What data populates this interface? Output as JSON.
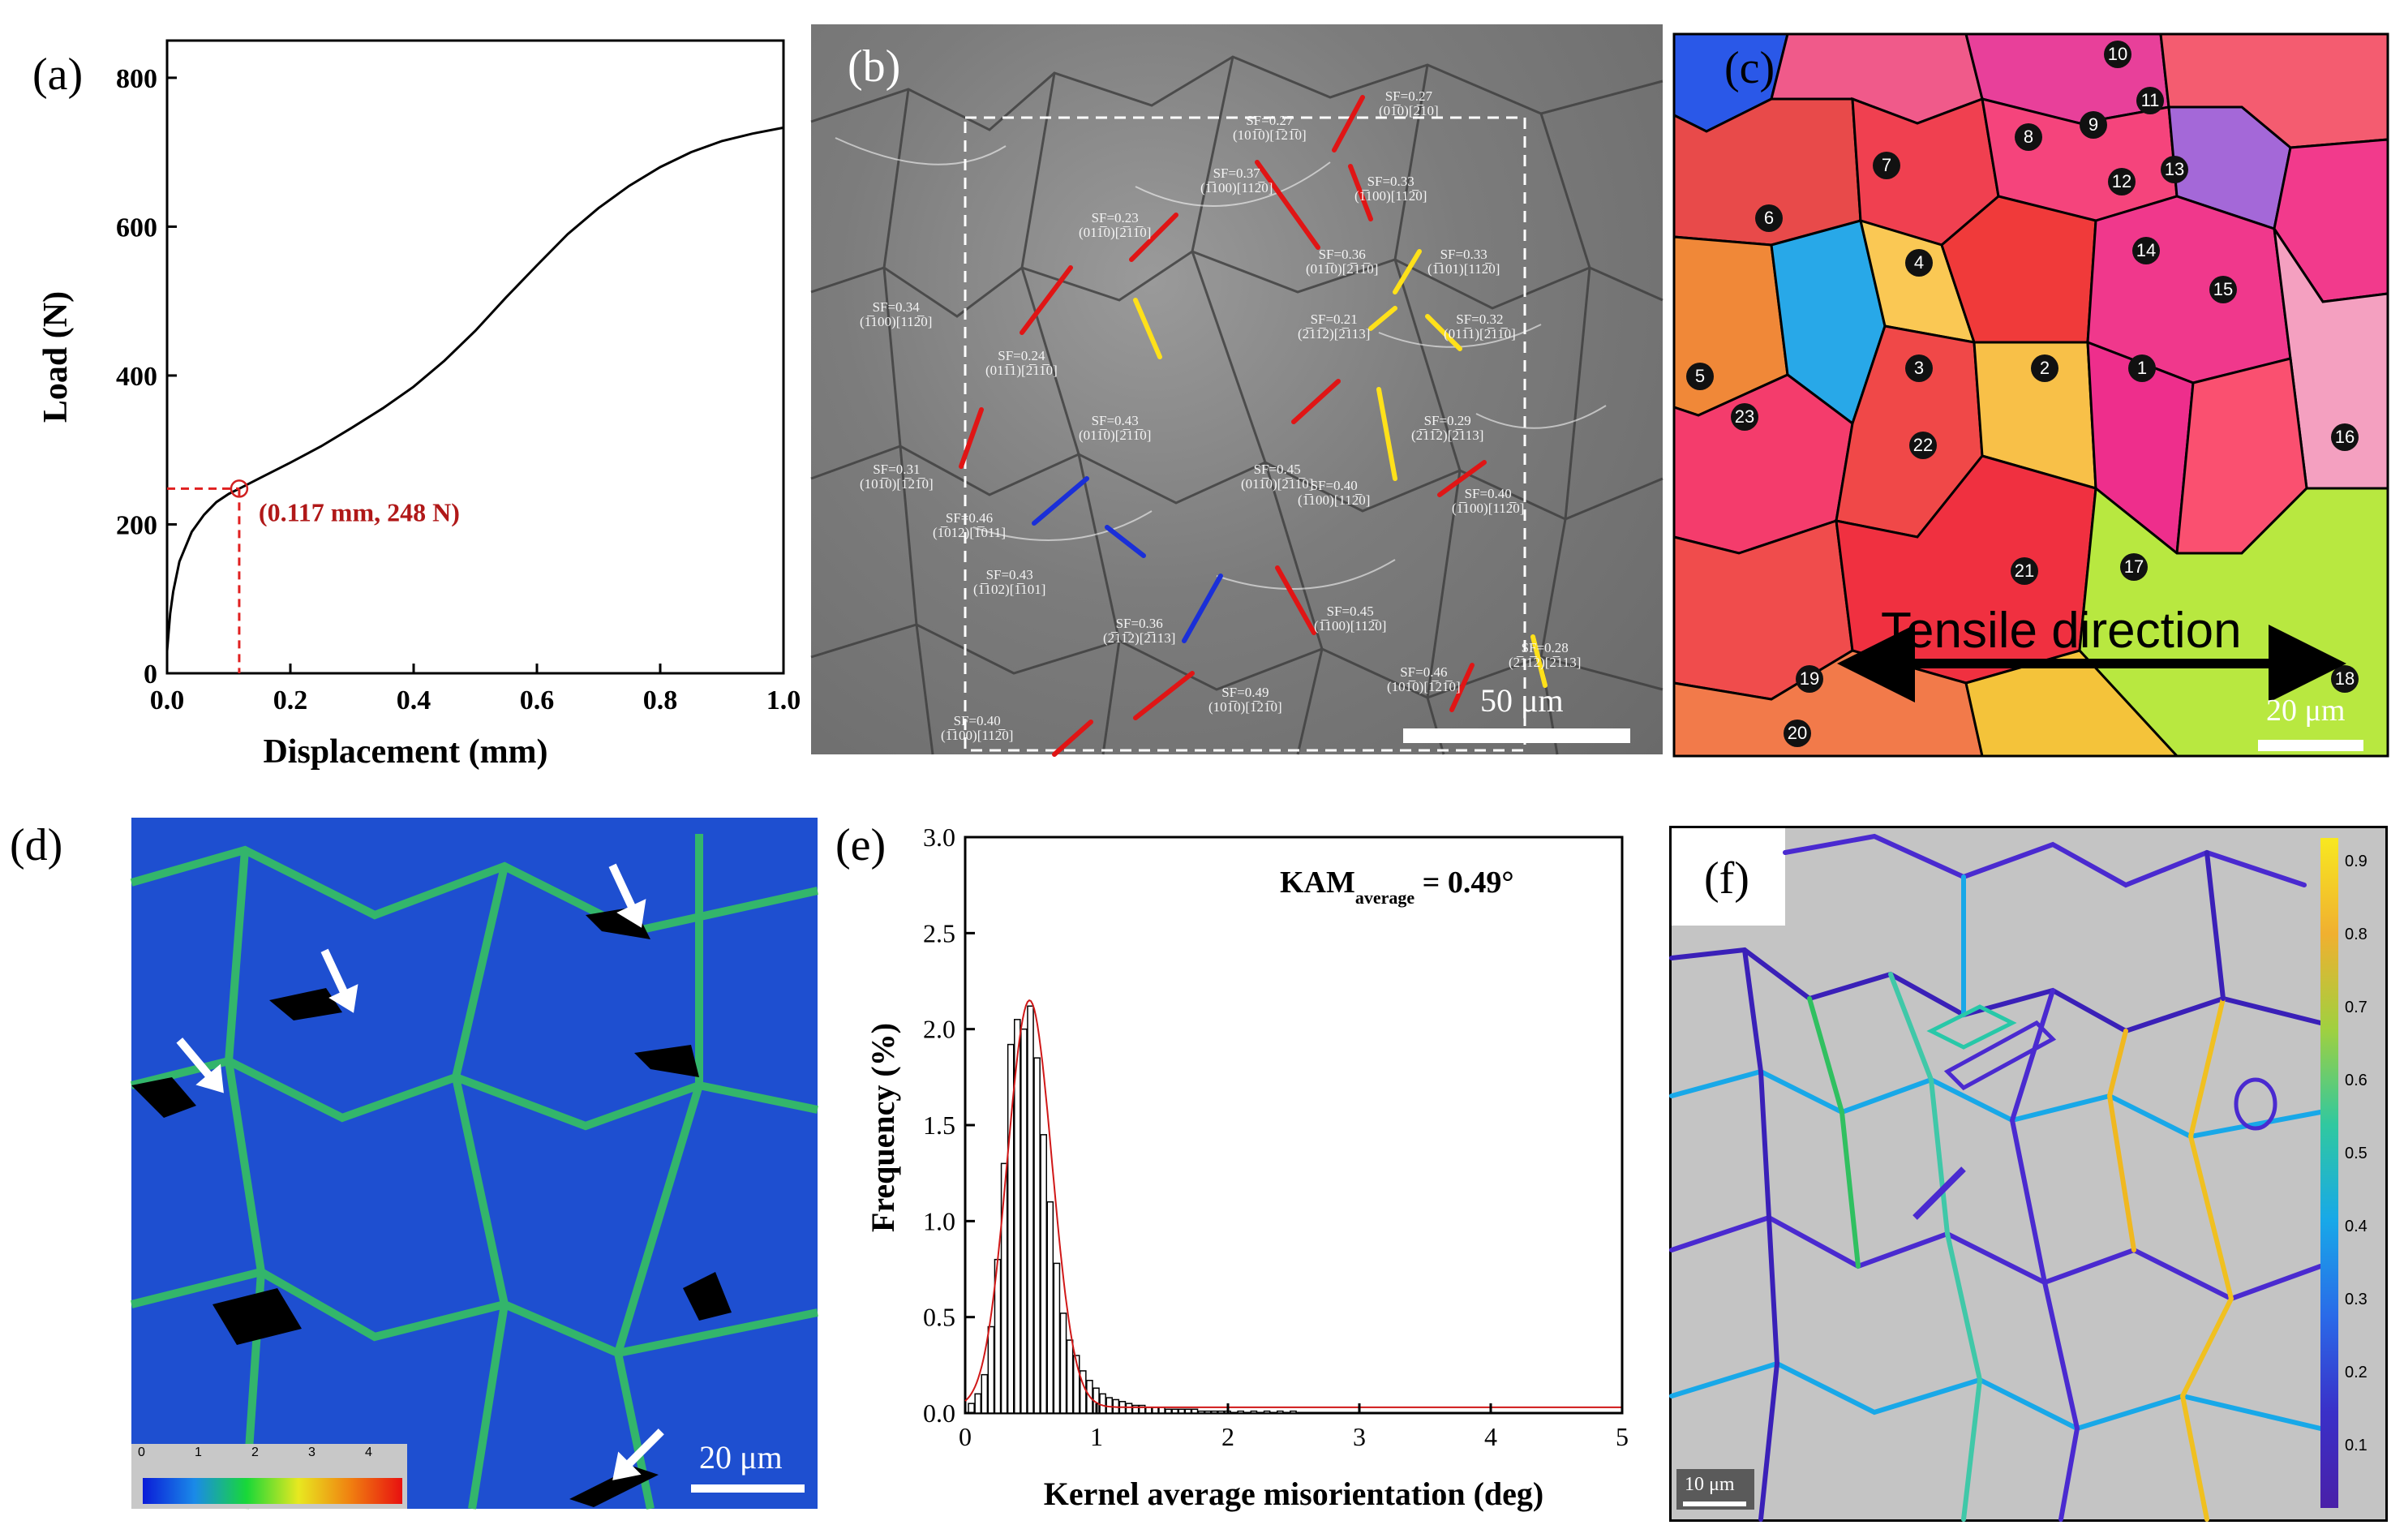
{
  "panels": {
    "a": {
      "label": "(a)",
      "xlabel": "Displacement (mm)",
      "ylabel": "Load (N)",
      "xticks": [
        "0.0",
        "0.2",
        "0.4",
        "0.6",
        "0.8",
        "1.0"
      ],
      "yticks": [
        "0",
        "200",
        "400",
        "600",
        "800"
      ],
      "annotation": "(0.117 mm, 248 N)"
    },
    "b": {
      "label": "(b)",
      "scale": "50 μm",
      "sf_labels": [
        "SF=0.27\n(01̅0)[2̅10]",
        "SF=0.27\n(101̅0)[1̅21̅0]",
        "SF=0.37\n(1̅100)[112̅0]",
        "SF=0.33\n(1̅100)[112̅0]",
        "SF=0.23\n(011̅0)[2̅11̅0]",
        "SF=0.36\n(011̅0)[2̅11̅0]",
        "SF=0.33\n(1̅101)[112̅0]",
        "SF=0.34\n(1̅100)[112̅0]",
        "SF=0.21\n(2̅11̅2)[2̅113]",
        "SF=0.32\n(011̅1)[2̅11̅0]",
        "SF=0.24\n(011̅1)[2̅11̅0]",
        "SF=0.43\n(011̅0)[2̅11̅0]",
        "SF=0.29\n(2̅11̅2)[2̅113]",
        "SF=0.31\n(101̅0)[1̅21̅0]",
        "SF=0.45\n(011̅0)[2̅11̅0]",
        "SF=0.40\n(1̅100)[112̅0]",
        "SF=0.40\n(1̅100)[112̅0]",
        "SF=0.46\n(1̅012)[1̅011]",
        "SF=0.43\n(1̅102)[1̅101]",
        "SF=0.36\n(2̅11̅2)[2̅113]",
        "SF=0.45\n(1̅100)[112̅0]",
        "SF=0.28\n(2̅11̅2)[2̅113]",
        "SF=0.46\n(101̅0)[1̅21̅0]",
        "SF=0.49\n(101̅0)[1̅21̅0]",
        "SF=0.40\n(1̅100)[112̅0]"
      ]
    },
    "c": {
      "label": "(c)",
      "scale": "20 μm",
      "tensile": "Tensile direction",
      "grains": [
        "10",
        "11",
        "9",
        "8",
        "7",
        "12",
        "13",
        "6",
        "14",
        "4",
        "15",
        "5",
        "3",
        "2",
        "1",
        "23",
        "22",
        "16",
        "21",
        "17",
        "19",
        "18",
        "20"
      ]
    },
    "d": {
      "label": "(d)",
      "scale": "20 μm",
      "colorbar_ticks": [
        "0",
        "1",
        "2",
        "3",
        "4"
      ]
    },
    "e": {
      "label": "(e)",
      "xlabel": "Kernel average misorientation (deg)",
      "ylabel": "Frequency (%)",
      "xticks": [
        "0",
        "1",
        "2",
        "3",
        "4",
        "5"
      ],
      "yticks": [
        "0.0",
        "0.5",
        "1.0",
        "1.5",
        "2.0",
        "2.5",
        "3.0"
      ],
      "kam_main": "KAM",
      "kam_sub": "average",
      "kam_value": " = 0.49°"
    },
    "f": {
      "label": "(f)",
      "scale": "10 μm",
      "colorbar_ticks": [
        "0.9",
        "0.8",
        "0.7",
        "0.6",
        "0.5",
        "0.4",
        "0.3",
        "0.2",
        "0.1"
      ]
    }
  },
  "chart_data": [
    {
      "type": "line",
      "panel": "a",
      "xlabel": "Displacement (mm)",
      "ylabel": "Load (N)",
      "xlim": [
        0.0,
        1.0
      ],
      "ylim": [
        0,
        850
      ],
      "x": [
        0.0,
        0.005,
        0.01,
        0.02,
        0.04,
        0.06,
        0.08,
        0.1,
        0.117,
        0.15,
        0.2,
        0.25,
        0.3,
        0.35,
        0.4,
        0.45,
        0.5,
        0.55,
        0.6,
        0.65,
        0.7,
        0.75,
        0.8,
        0.85,
        0.9,
        0.95,
        1.0
      ],
      "y": [
        30,
        80,
        110,
        150,
        190,
        213,
        230,
        241,
        248,
        262,
        283,
        305,
        330,
        356,
        385,
        420,
        460,
        505,
        548,
        590,
        625,
        655,
        680,
        700,
        715,
        725,
        733
      ],
      "annotations": [
        "(0.117 mm, 248 N)"
      ]
    },
    {
      "type": "bar",
      "panel": "e",
      "xlabel": "Kernel average misorientation (deg)",
      "ylabel": "Frequency (%)",
      "xlim": [
        0,
        5
      ],
      "ylim": [
        0,
        3.0
      ],
      "bin_width": 0.05,
      "x": [
        0.05,
        0.1,
        0.15,
        0.2,
        0.25,
        0.3,
        0.35,
        0.4,
        0.45,
        0.5,
        0.55,
        0.6,
        0.65,
        0.7,
        0.75,
        0.8,
        0.85,
        0.9,
        0.95,
        1.0,
        1.05,
        1.1,
        1.15,
        1.2,
        1.25,
        1.3,
        1.35,
        1.4,
        1.45,
        1.5,
        1.55,
        1.6,
        1.65,
        1.7,
        1.75,
        1.8,
        1.85,
        1.9,
        1.95,
        2.0,
        2.1,
        2.2,
        2.3,
        2.4,
        2.5
      ],
      "values": [
        0.05,
        0.1,
        0.2,
        0.45,
        0.8,
        1.3,
        1.92,
        2.05,
        2.0,
        2.12,
        1.85,
        1.45,
        1.1,
        0.78,
        0.52,
        0.38,
        0.3,
        0.22,
        0.17,
        0.13,
        0.1,
        0.08,
        0.07,
        0.06,
        0.05,
        0.04,
        0.04,
        0.03,
        0.03,
        0.03,
        0.02,
        0.02,
        0.02,
        0.02,
        0.02,
        0.01,
        0.01,
        0.01,
        0.01,
        0.01,
        0.01,
        0.01,
        0.01,
        0.01,
        0.01
      ],
      "fit": {
        "mean": 0.49,
        "sigma": 0.17,
        "peak": 2.12
      },
      "annotations": [
        "KAM average = 0.49°"
      ]
    }
  ]
}
